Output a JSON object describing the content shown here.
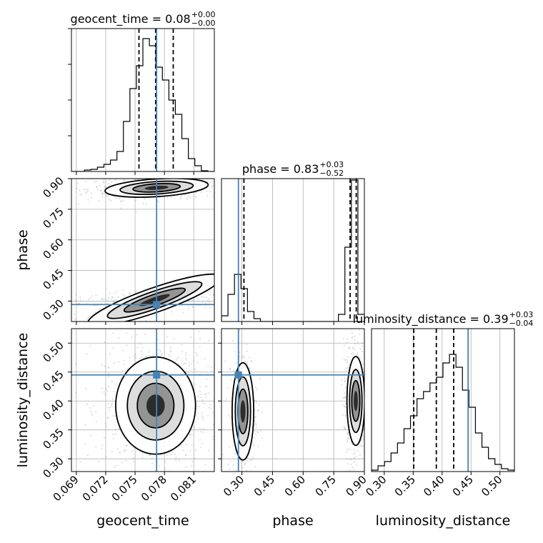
{
  "chart_data": {
    "type": "corner",
    "parameters": [
      "geocent_time",
      "phase",
      "luminosity_distance"
    ],
    "titles": [
      {
        "param": "geocent_time",
        "prefix": "geocent_time = 0.08",
        "plus": "+0.00",
        "minus": "−0.00"
      },
      {
        "param": "phase",
        "prefix": "phase = 0.83",
        "plus": "+0.03",
        "minus": "−0.52"
      },
      {
        "param": "luminosity_distance",
        "prefix": "luminosity_distance = 0.39",
        "plus": "+0.03",
        "minus": "−0.04"
      }
    ],
    "axis_labels": {
      "geocent_time": "geocent_time",
      "phase": "phase",
      "luminosity_distance": "luminosity_distance"
    },
    "ranges": {
      "geocent_time": [
        0.0685,
        0.0831
      ],
      "phase": [
        0.2,
        0.9
      ],
      "luminosity_distance": [
        0.278,
        0.525
      ]
    },
    "ticks": {
      "geocent_time": [
        0.069,
        0.072,
        0.075,
        0.078,
        0.081
      ],
      "phase": [
        0.3,
        0.45,
        0.6,
        0.75,
        0.9
      ],
      "luminosity_distance": [
        0.3,
        0.35,
        0.4,
        0.45,
        0.5
      ]
    },
    "tick_labels": {
      "geocent_time": [
        "0.069",
        "0.072",
        "0.075",
        "0.078",
        "0.081"
      ],
      "phase": [
        "0.30",
        "0.45",
        "0.60",
        "0.75",
        "0.90"
      ],
      "luminosity_distance": [
        "0.30",
        "0.35",
        "0.40",
        "0.45",
        "0.50"
      ]
    },
    "truths": {
      "geocent_time": 0.0772,
      "phase": 0.283,
      "luminosity_distance": 0.445
    },
    "quantiles": {
      "geocent_time": [
        0.0754,
        0.0771,
        0.0789
      ],
      "phase": [
        0.31,
        0.83,
        0.86
      ],
      "luminosity_distance": [
        0.351,
        0.39,
        0.42
      ]
    },
    "histograms": {
      "geocent_time": [
        0,
        0,
        0.01,
        0.015,
        0.03,
        0.05,
        0.08,
        0.14,
        0.35,
        0.58,
        0.74,
        0.93,
        0.88,
        0.73,
        0.64,
        0.5,
        0.4,
        0.23,
        0.09,
        0.04,
        0.005,
        0
      ],
      "phase": [
        0.04,
        0.19,
        0.33,
        0.23,
        0.07,
        0.02,
        0,
        0,
        0,
        0,
        0,
        0,
        0,
        0,
        0,
        0,
        0,
        0,
        0.05,
        0.52,
        0.99,
        0.05
      ],
      "luminosity_distance": [
        0.01,
        0.04,
        0.07,
        0.13,
        0.2,
        0.3,
        0.39,
        0.51,
        0.56,
        0.62,
        0.66,
        0.76,
        0.82,
        0.73,
        0.57,
        0.45,
        0.27,
        0.17,
        0.09,
        0.05,
        0.02,
        0.01
      ]
    },
    "grid": true,
    "colors": {
      "truth": "#4682b4",
      "ink": "#000000",
      "grid": "#b0b0b0",
      "scatter": "#808080"
    }
  }
}
